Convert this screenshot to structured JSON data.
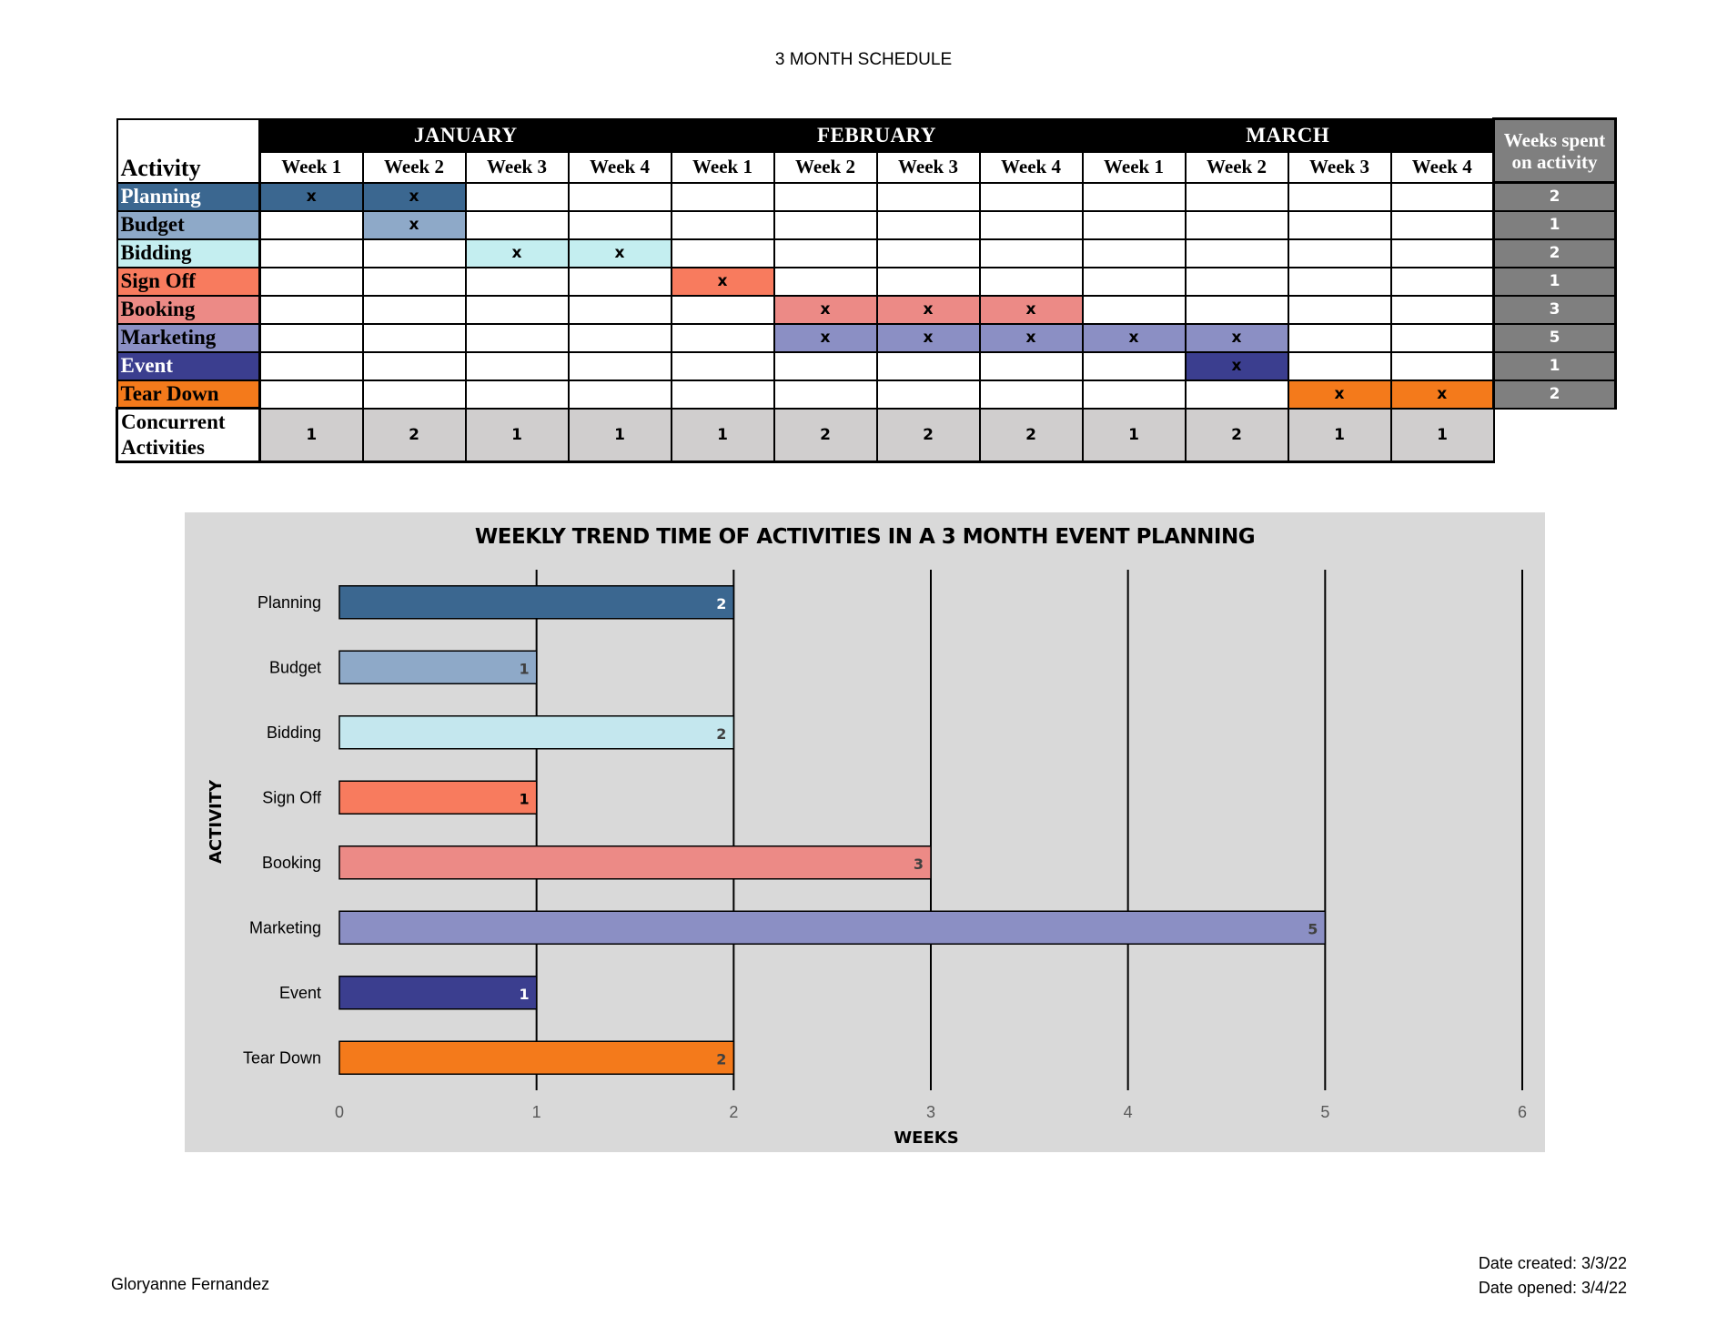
{
  "page_title": "3 MONTH SCHEDULE",
  "schedule": {
    "activity_header": "Activity",
    "weeks_header": "Weeks spent on activity",
    "months": [
      "JANUARY",
      "FEBRUARY",
      "MARCH"
    ],
    "week_labels": [
      "Week 1",
      "Week 2",
      "Week 3",
      "Week 4"
    ],
    "mark": "x",
    "activities": [
      {
        "name": "Planning",
        "color": "#3b6790",
        "text_color": "#ffffff",
        "weeks": [
          1,
          2
        ],
        "total": "2"
      },
      {
        "name": "Budget",
        "color": "#8ea9c8",
        "text_color": "#000000",
        "weeks": [
          2
        ],
        "total": "1"
      },
      {
        "name": "Bidding",
        "color": "#c4eef0",
        "text_color": "#000000",
        "weeks": [
          3,
          4
        ],
        "total": "2"
      },
      {
        "name": "Sign Off",
        "color": "#f87b5e",
        "text_color": "#000000",
        "weeks": [
          5
        ],
        "total": "1"
      },
      {
        "name": "Booking",
        "color": "#ec8a86",
        "text_color": "#000000",
        "weeks": [
          6,
          7,
          8
        ],
        "total": "3"
      },
      {
        "name": "Marketing",
        "color": "#8b8fc4",
        "text_color": "#000000",
        "weeks": [
          6,
          7,
          8,
          9,
          10
        ],
        "total": "5"
      },
      {
        "name": "Event",
        "color": "#3b3e8f",
        "text_color": "#ffffff",
        "weeks": [
          10
        ],
        "total": "1"
      },
      {
        "name": "Tear Down",
        "color": "#f47a1b",
        "text_color": "#000000",
        "weeks": [
          11,
          12
        ],
        "total": "2"
      }
    ],
    "concurrent_label": "Concurrent Activities",
    "concurrent": [
      "1",
      "2",
      "1",
      "1",
      "1",
      "2",
      "2",
      "2",
      "1",
      "2",
      "1",
      "1"
    ]
  },
  "chart_data": {
    "type": "bar",
    "orientation": "horizontal",
    "title": "WEEKLY TREND TIME OF ACTIVITIES IN A 3 MONTH EVENT PLANNING",
    "xlabel": "WEEKS",
    "ylabel": "ACTIVITY",
    "categories": [
      "Planning",
      "Budget",
      "Bidding",
      "Sign Off",
      "Booking",
      "Marketing",
      "Event",
      "Tear Down"
    ],
    "values": [
      2,
      1,
      2,
      1,
      3,
      5,
      1,
      2
    ],
    "colors": [
      "#3b6790",
      "#8ea9c8",
      "#c4e7ee",
      "#f87b5e",
      "#ec8a86",
      "#8b8fc4",
      "#3b3e8f",
      "#f47a1b"
    ],
    "label_colors": [
      "#ffffff",
      "#404040",
      "#404040",
      "#000000",
      "#404040",
      "#404040",
      "#ffffff",
      "#404040"
    ],
    "xlim": [
      0,
      6
    ],
    "xticks": [
      0,
      1,
      2,
      3,
      4,
      5,
      6
    ],
    "grid": "vertical"
  },
  "footer": {
    "author": "Gloryanne Fernandez",
    "date_created": "Date created: 3/3/22",
    "date_opened": "Date opened: 3/4/22"
  }
}
